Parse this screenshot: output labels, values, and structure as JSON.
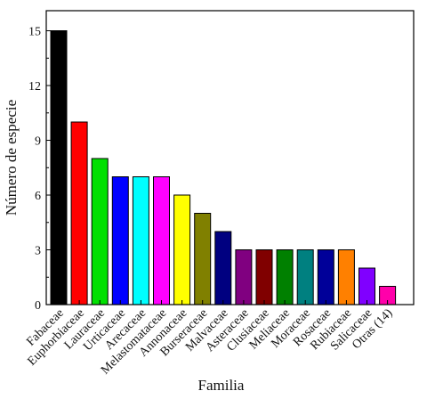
{
  "chart_data": {
    "type": "bar",
    "title": "",
    "xlabel": "Familia",
    "ylabel": "Número de especie",
    "ylim": [
      0,
      16.1
    ],
    "yticks": [
      0,
      3,
      6,
      9,
      12,
      15
    ],
    "grid": false,
    "legend": "none",
    "categories": [
      "Fabaceae",
      "Euphorbiaceae",
      "Lauraceae",
      "Urticaceae",
      "Arecaceae",
      "Melastomataceae",
      "Annonaceae",
      "Burseraceae",
      "Malvaceae",
      "Asteraceae",
      "Clusiaceae",
      "Meliaceae",
      "Moraceae",
      "Rosaceae",
      "Rubiaceae",
      "Salicaceae",
      "Otras (14)"
    ],
    "values": [
      15,
      10,
      8,
      7,
      7,
      7,
      6,
      5,
      4,
      3,
      3,
      3,
      3,
      3,
      3,
      2,
      1
    ],
    "colors": [
      "#000000",
      "#ff0000",
      "#00e000",
      "#0000ff",
      "#00ffff",
      "#ff00ff",
      "#ffff00",
      "#808000",
      "#000080",
      "#800080",
      "#800000",
      "#008000",
      "#008080",
      "#000099",
      "#ff8000",
      "#8000ff",
      "#ff00aa"
    ]
  }
}
